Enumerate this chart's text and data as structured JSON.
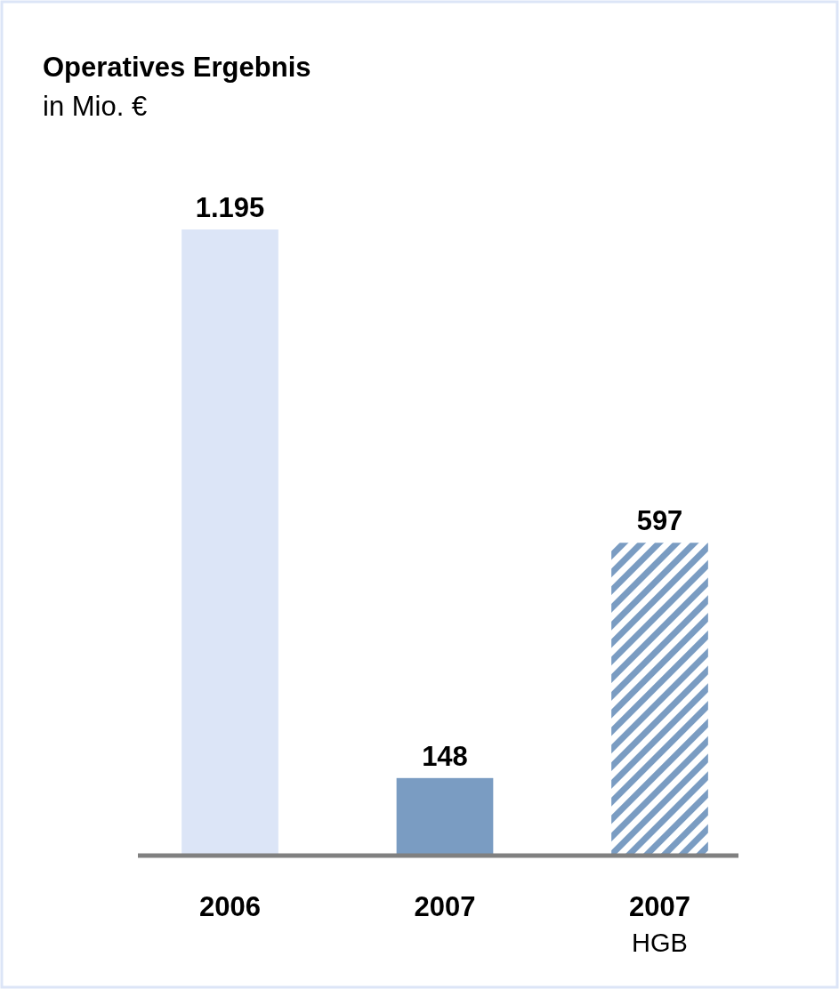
{
  "chart_data": {
    "type": "bar",
    "title": "Operatives Ergebnis",
    "subtitle": "in Mio. €",
    "categories": [
      "2006",
      "2007",
      "2007\nHGB"
    ],
    "values": [
      1195,
      148,
      597
    ],
    "colors": [
      "#dce5f7",
      "#7a9cc2",
      "#7a9cc2"
    ],
    "value_labels": [
      "1.195",
      "148",
      "597"
    ]
  }
}
